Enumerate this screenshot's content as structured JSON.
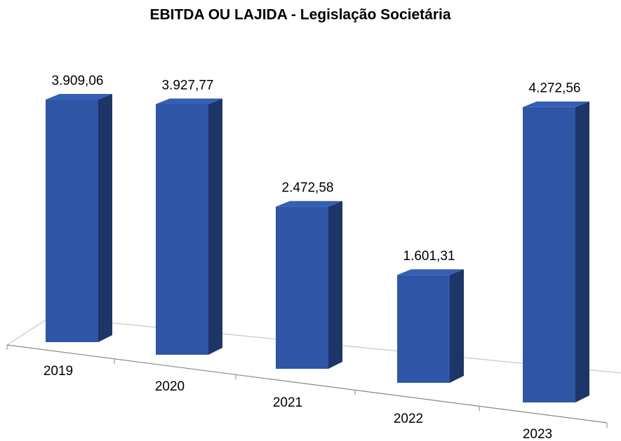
{
  "chart_data": {
    "type": "bar3d",
    "title": "EBITDA OU LAJIDA - Legislação Societária",
    "categories": [
      "2019",
      "2020",
      "2021",
      "2022",
      "2023"
    ],
    "values": [
      3909.06,
      3927.77,
      2472.58,
      1601.31,
      4272.56
    ],
    "value_labels": [
      "3.909,06",
      "3.927,77",
      "2.472,58",
      "1.601,31",
      "4.272,56"
    ],
    "color": "#2f56a6"
  }
}
